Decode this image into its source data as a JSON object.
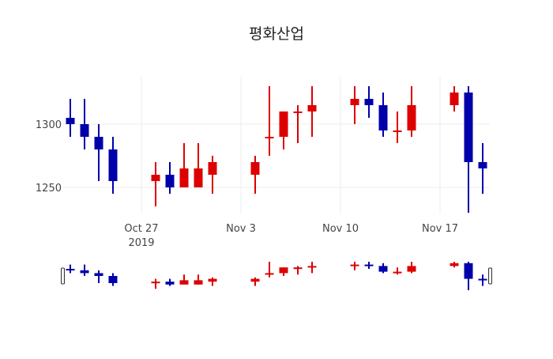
{
  "title": "평화산업",
  "colors": {
    "increasing": "#dd0000",
    "decreasing": "#0000aa",
    "grid": "#eeeeee",
    "tick_text": "#444444",
    "slider_handle_fill": "#f2f2f2",
    "slider_handle_stroke": "#333333"
  },
  "xaxis": {
    "ticks": [
      {
        "date": "2019-10-27",
        "label": "Oct 27",
        "sublabel": "2019"
      },
      {
        "date": "2019-11-03",
        "label": "Nov 3",
        "sublabel": ""
      },
      {
        "date": "2019-11-10",
        "label": "Nov 10",
        "sublabel": ""
      },
      {
        "date": "2019-11-17",
        "label": "Nov 17",
        "sublabel": ""
      }
    ],
    "range": [
      "2019-10-21T12:00",
      "2019-11-20T12:00"
    ]
  },
  "yaxis": {
    "ticks": [
      {
        "value": 1250,
        "label": "1250"
      },
      {
        "value": 1300,
        "label": "1300"
      }
    ],
    "range": [
      1225,
      1340
    ]
  },
  "rangeslider": {
    "visible": true
  },
  "chart_data": {
    "type": "candlestick",
    "title": "평화산업",
    "xlabel": "",
    "ylabel": "",
    "ylim": [
      1225,
      1340
    ],
    "grid": true,
    "legend": "none",
    "rangeslider": true,
    "x": [
      "2019-10-22",
      "2019-10-23",
      "2019-10-24",
      "2019-10-25",
      "2019-10-28",
      "2019-10-29",
      "2019-10-30",
      "2019-10-31",
      "2019-11-01",
      "2019-11-04",
      "2019-11-05",
      "2019-11-06",
      "2019-11-07",
      "2019-11-08",
      "2019-11-11",
      "2019-11-12",
      "2019-11-13",
      "2019-11-14",
      "2019-11-15",
      "2019-11-18",
      "2019-11-19",
      "2019-11-20"
    ],
    "open": [
      1305,
      1300,
      1290,
      1280,
      1255,
      1260,
      1250,
      1250,
      1260,
      1260,
      1290,
      1290,
      1310,
      1310,
      1315,
      1320,
      1315,
      1295,
      1295,
      1315,
      1325,
      1270
    ],
    "high": [
      1320,
      1320,
      1300,
      1290,
      1270,
      1270,
      1285,
      1285,
      1275,
      1275,
      1330,
      1310,
      1315,
      1330,
      1330,
      1330,
      1325,
      1310,
      1330,
      1330,
      1330,
      1285
    ],
    "low": [
      1290,
      1280,
      1255,
      1245,
      1235,
      1245,
      1250,
      1250,
      1245,
      1245,
      1275,
      1280,
      1285,
      1290,
      1300,
      1305,
      1290,
      1285,
      1290,
      1310,
      1230,
      1245
    ],
    "close": [
      1300,
      1290,
      1280,
      1255,
      1260,
      1250,
      1265,
      1265,
      1270,
      1270,
      1290,
      1310,
      1310,
      1315,
      1320,
      1315,
      1295,
      1295,
      1315,
      1325,
      1270,
      1265
    ]
  }
}
